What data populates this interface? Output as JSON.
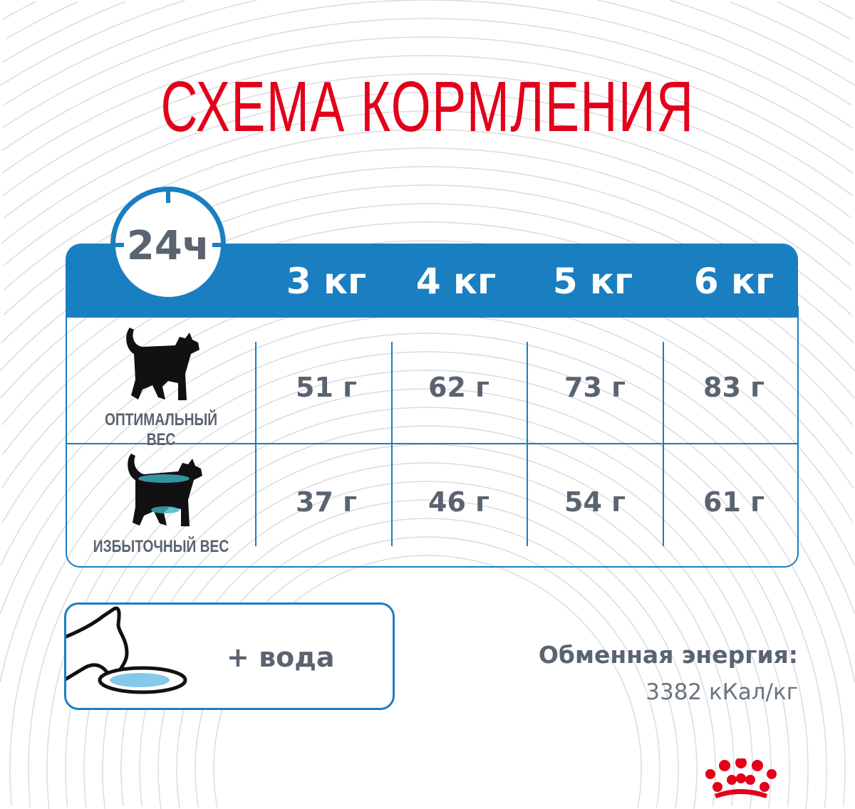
{
  "title": "СХЕМА КОРМЛЕНИЯ",
  "period_badge": "24ч",
  "weights": [
    "3 кг",
    "4 кг",
    "5 кг",
    "6 кг"
  ],
  "rows": [
    {
      "label": "ОПТИМАЛЬНЫЙ ВЕС",
      "icon": "cat-silhouette-icon",
      "values": [
        "51 г",
        "62 г",
        "73 г",
        "83 г"
      ]
    },
    {
      "label": "ИЗБЫТОЧНЫЙ ВЕС",
      "icon": "overweight-cat-icon",
      "values": [
        "37 г",
        "46 г",
        "54 г",
        "61 г"
      ]
    }
  ],
  "water": {
    "label": "+ вода",
    "icon": "cat-drinking-icon"
  },
  "energy": {
    "label": "Обменная энергия:",
    "value": "3382 кКал/кг"
  },
  "logo": {
    "icon": "royal-canin-crown-icon"
  },
  "colors": {
    "brand_red": "#e2001a",
    "accent_blue": "#1a7fc1",
    "text_gray": "#5a6470"
  }
}
